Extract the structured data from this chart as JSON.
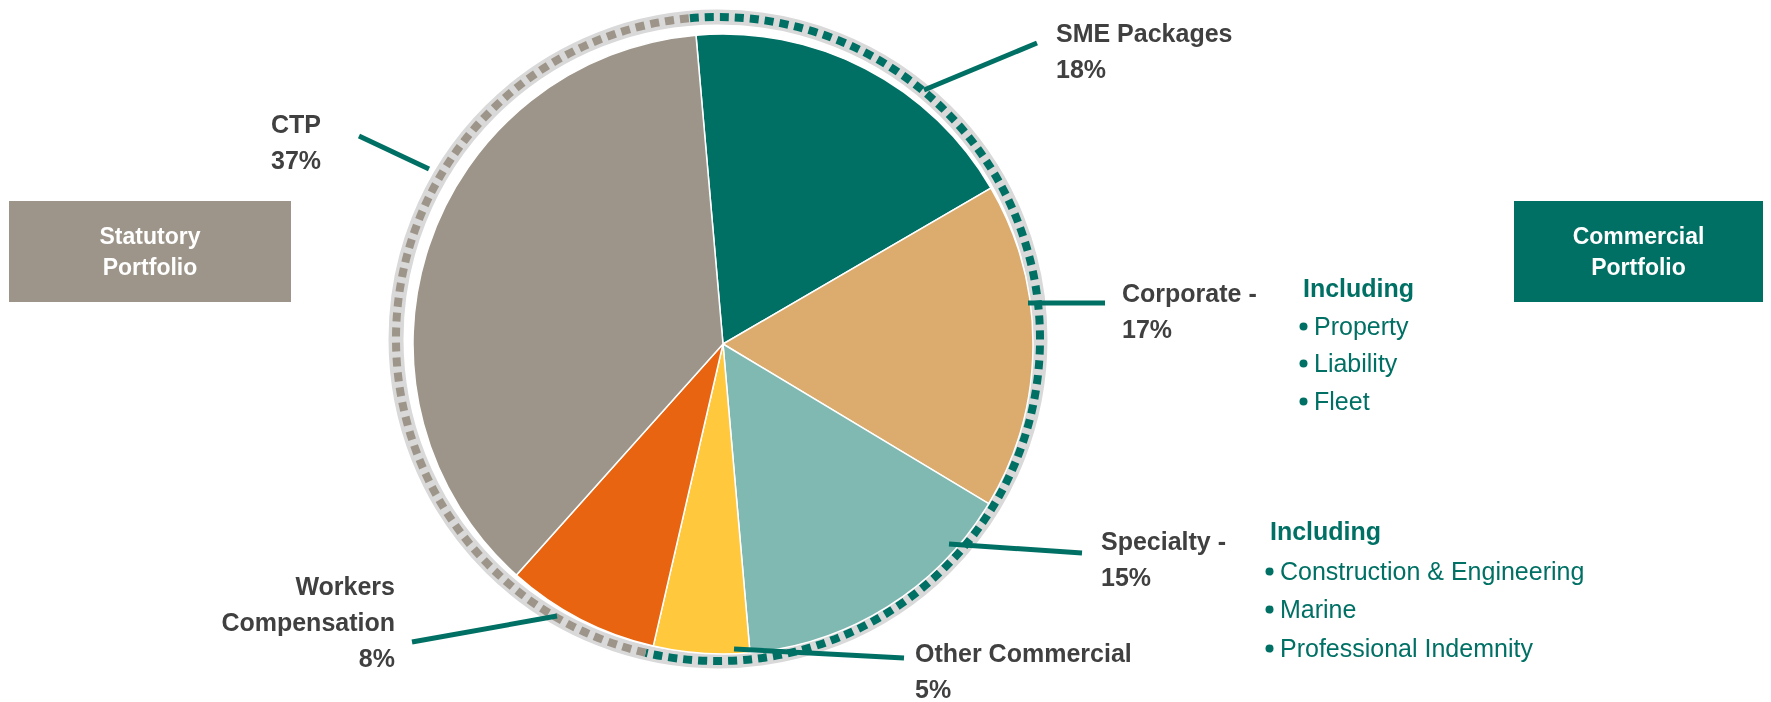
{
  "chart_data": {
    "type": "pie",
    "categories": [
      "SME Packages",
      "Corporate -",
      "Specialty -",
      "Other Commercial",
      "Workers Compensation",
      "CTP"
    ],
    "values": [
      18,
      17,
      15,
      5,
      8,
      37
    ],
    "value_labels": [
      "18%",
      "17%",
      "15%",
      "5%",
      "8%",
      "37%"
    ],
    "colors": [
      "#007065",
      "#dbac6e",
      "#80b8b2",
      "#ffc83d",
      "#e86410",
      "#9d9589"
    ],
    "annotations": [
      "Statutory Portfolio",
      "Commercial Portfolio",
      "Including",
      "Property",
      "Liability",
      "Fleet",
      "Including",
      "Construction & Engineering",
      "Marine",
      "Professional Indemnity"
    ]
  }
}
